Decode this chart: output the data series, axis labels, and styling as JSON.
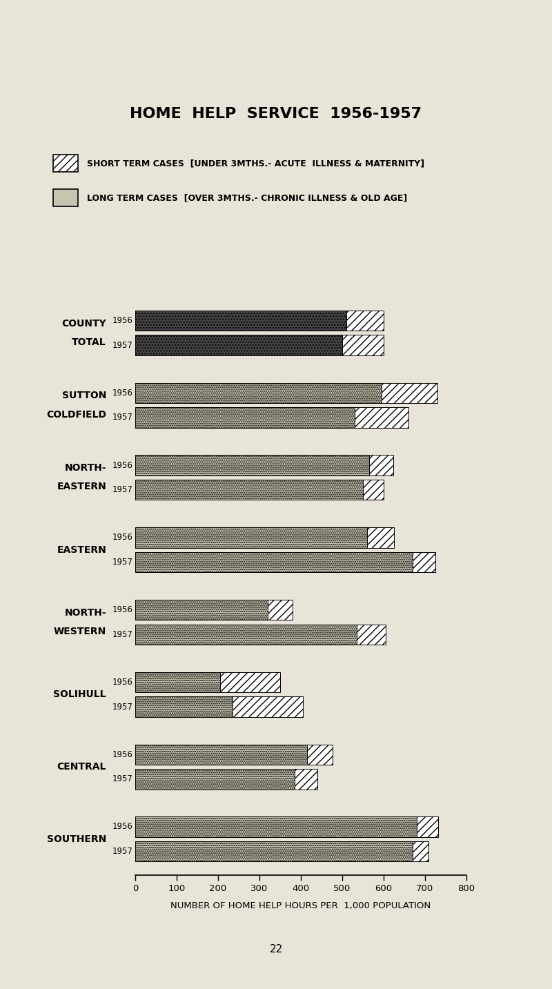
{
  "title": "HOME  HELP  SERVICE  1956-1957",
  "legend_short": "SHORT TERM CASES  [UNDER 3MTHS.- ACUTE  ILLNESS & MATERNITY]",
  "legend_long": "LONG TERM CASES  [OVER 3MTHS.- CHRONIC ILLNESS & OLD AGE]",
  "xlabel": "NUMBER OF HOME HELP HOURS PER  1,000 POPULATION",
  "xlim": [
    0,
    800
  ],
  "xticks": [
    0,
    100,
    200,
    300,
    400,
    500,
    600,
    700,
    800
  ],
  "background_color": "#e8e4d8",
  "long_color_normal": "#c8c4b0",
  "long_color_county": "#444444",
  "groups": [
    {
      "label_line1": "COUNTY",
      "label_line2": "TOTAL",
      "long_values": [
        510,
        500
      ],
      "short_values": [
        90,
        100
      ],
      "is_county": true
    },
    {
      "label_line1": "SUTTON",
      "label_line2": "COLDFIELD",
      "long_values": [
        595,
        530
      ],
      "short_values": [
        135,
        130
      ],
      "is_county": false
    },
    {
      "label_line1": "NORTH-",
      "label_line2": "EASTERN",
      "long_values": [
        565,
        550
      ],
      "short_values": [
        58,
        50
      ],
      "is_county": false
    },
    {
      "label_line1": "EASTERN",
      "label_line2": "",
      "long_values": [
        560,
        670
      ],
      "short_values": [
        65,
        55
      ],
      "is_county": false
    },
    {
      "label_line1": "NORTH-",
      "label_line2": "WESTERN",
      "long_values": [
        320,
        535
      ],
      "short_values": [
        60,
        70
      ],
      "is_county": false
    },
    {
      "label_line1": "SOLIHULL",
      "label_line2": "",
      "long_values": [
        205,
        235
      ],
      "short_values": [
        145,
        170
      ],
      "is_county": false
    },
    {
      "label_line1": "CENTRAL",
      "label_line2": "",
      "long_values": [
        415,
        385
      ],
      "short_values": [
        62,
        55
      ],
      "is_county": false
    },
    {
      "label_line1": "SOUTHERN",
      "label_line2": "",
      "long_values": [
        680,
        670
      ],
      "short_values": [
        52,
        38
      ],
      "is_county": false
    }
  ],
  "page_number": "22"
}
